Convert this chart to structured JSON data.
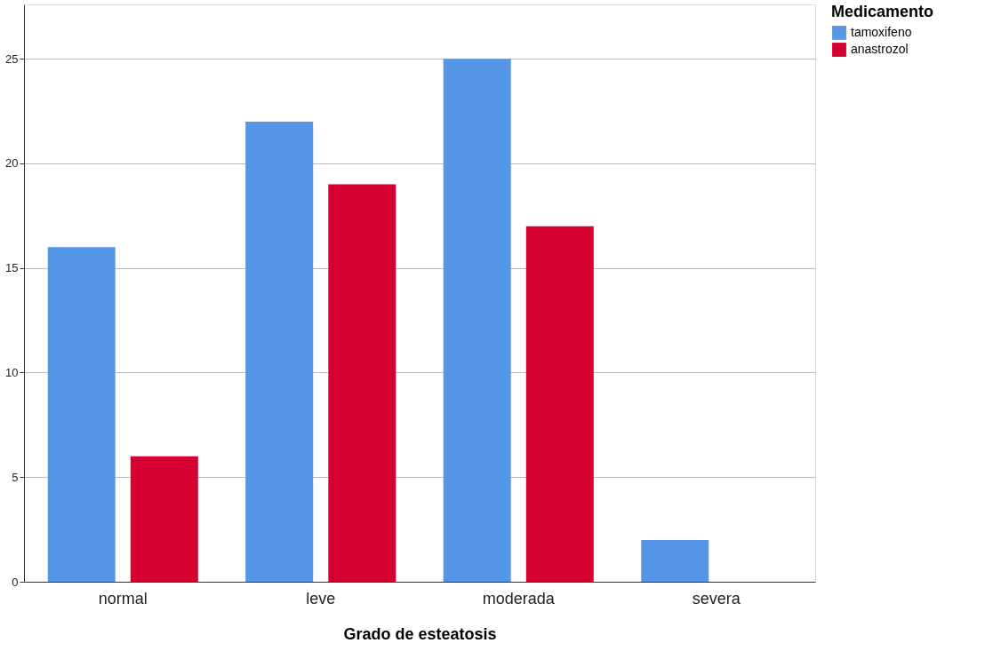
{
  "chart_data": {
    "type": "bar",
    "xlabel": "Grado de esteatosis",
    "legend_title": "Medicamento",
    "categories": [
      "normal",
      "leve",
      "moderada",
      "severa"
    ],
    "series": [
      {
        "name": "tamoxifeno",
        "color": "#5596e6",
        "values": [
          16,
          22,
          25,
          2
        ]
      },
      {
        "name": "anastrozol",
        "color": "#d5002f",
        "values": [
          6,
          19,
          17,
          0
        ]
      }
    ],
    "ylim": [
      0,
      27.6
    ],
    "yticks": [
      0,
      5,
      10,
      15,
      20,
      25
    ],
    "grid": "y",
    "legend": "top right"
  }
}
